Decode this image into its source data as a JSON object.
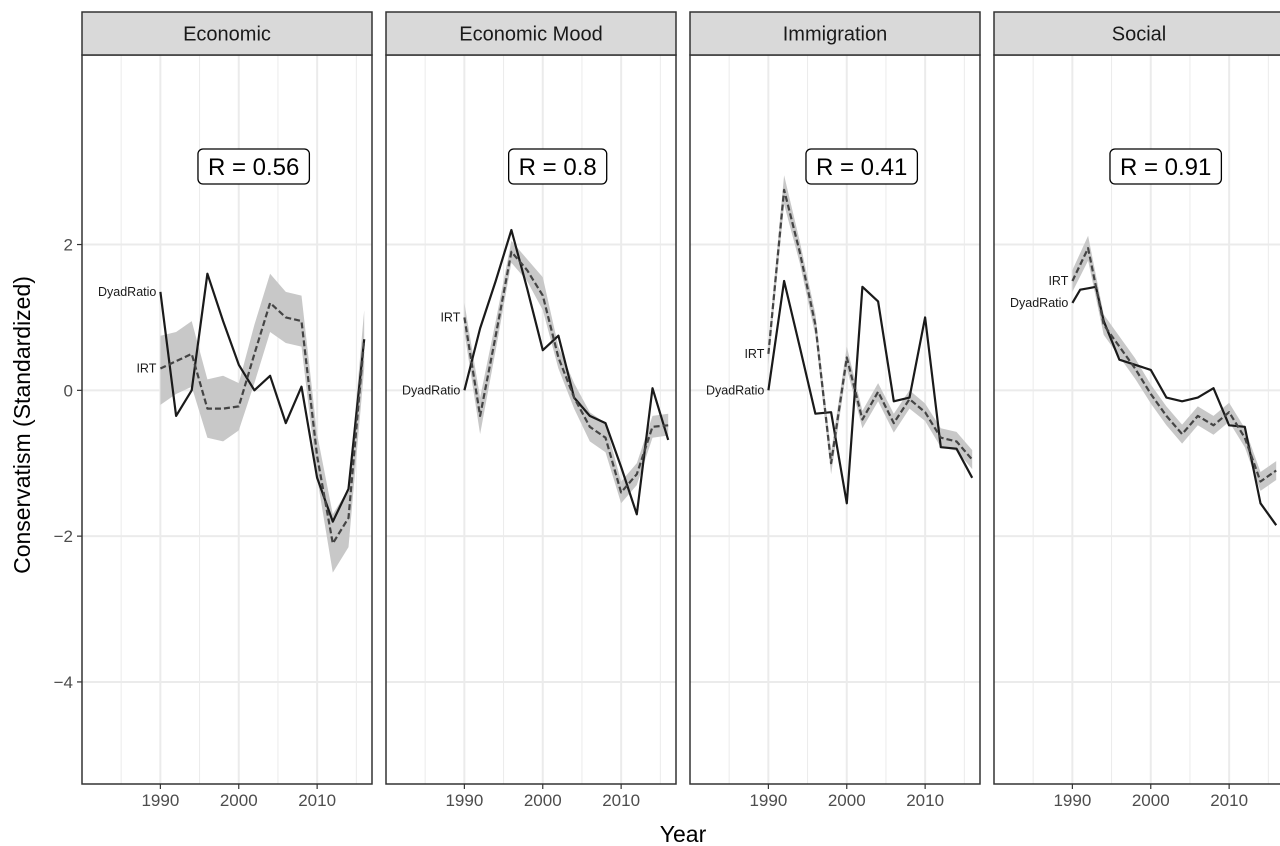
{
  "chart_data": {
    "type": "line",
    "title": "",
    "xlabel": "Year",
    "ylabel": "Conservatism (Standardized)",
    "xlim": [
      1980,
      2017
    ],
    "ylim": [
      -5.4,
      4.6
    ],
    "x_ticks": [
      1990,
      2000,
      2010
    ],
    "y_ticks": [
      -4,
      -2,
      0,
      2
    ],
    "grid": true,
    "legend": "none",
    "colors": {
      "dyad": "#1a1a1a",
      "irt": "#444444",
      "ribbon": "#c8c8c8",
      "strip": "#d9d9d9",
      "panel_border": "#333333",
      "grid": "#ebebeb"
    },
    "panels": [
      {
        "name": "Economic",
        "r_label": "R = 0.56",
        "series": [
          {
            "name": "DyadRatio",
            "style": "solid",
            "label": "DyadRatio",
            "x": [
              1990,
              1992,
              1994,
              1996,
              1998,
              2000,
              2002,
              2004,
              2006,
              2008,
              2010,
              2012,
              2014,
              2016
            ],
            "y": [
              1.35,
              -0.35,
              0.0,
              1.6,
              0.95,
              0.35,
              0.0,
              0.2,
              -0.45,
              0.05,
              -1.2,
              -1.8,
              -1.35,
              0.7
            ]
          },
          {
            "name": "IRT",
            "style": "dashed",
            "label": "IRT",
            "x": [
              1990,
              1992,
              1994,
              1996,
              1998,
              2000,
              2002,
              2004,
              2006,
              2008,
              2010,
              2012,
              2014,
              2016
            ],
            "y": [
              0.3,
              0.4,
              0.5,
              -0.25,
              -0.25,
              -0.22,
              0.5,
              1.2,
              1.0,
              0.95,
              -0.9,
              -2.1,
              -1.75,
              0.7
            ],
            "lower": [
              -0.2,
              -0.05,
              0.05,
              -0.65,
              -0.7,
              -0.55,
              0.1,
              0.8,
              0.65,
              0.6,
              -1.2,
              -2.5,
              -2.15,
              0.3
            ],
            "upper": [
              0.75,
              0.8,
              0.95,
              0.15,
              0.2,
              0.1,
              0.9,
              1.6,
              1.35,
              1.3,
              -0.6,
              -1.7,
              -1.35,
              1.1
            ]
          }
        ]
      },
      {
        "name": "Economic Mood",
        "r_label": "R = 0.8",
        "series": [
          {
            "name": "DyadRatio",
            "style": "solid",
            "label": "DyadRatio",
            "x": [
              1990,
              1992,
              1994,
              1996,
              1998,
              2000,
              2002,
              2004,
              2006,
              2008,
              2010,
              2012,
              2014,
              2016
            ],
            "y": [
              0.0,
              0.85,
              1.5,
              2.2,
              1.4,
              0.55,
              0.75,
              -0.1,
              -0.35,
              -0.45,
              -1.05,
              -1.7,
              0.03,
              -0.68
            ]
          },
          {
            "name": "IRT",
            "style": "dashed",
            "label": "IRT",
            "x": [
              1990,
              1992,
              1994,
              1996,
              1998,
              2000,
              2002,
              2004,
              2006,
              2008,
              2010,
              2012,
              2014,
              2016
            ],
            "y": [
              1.0,
              -0.35,
              0.75,
              1.9,
              1.65,
              1.3,
              0.45,
              -0.1,
              -0.5,
              -0.65,
              -1.4,
              -1.15,
              -0.5,
              -0.48
            ],
            "lower": [
              0.8,
              -0.6,
              0.55,
              1.75,
              1.5,
              1.1,
              0.3,
              -0.25,
              -0.7,
              -0.85,
              -1.55,
              -1.3,
              -0.65,
              -0.62
            ],
            "upper": [
              1.2,
              -0.1,
              0.95,
              2.05,
              1.8,
              1.55,
              0.6,
              0.1,
              -0.3,
              -0.45,
              -1.25,
              -1.0,
              -0.35,
              -0.32
            ]
          }
        ]
      },
      {
        "name": "Immigration",
        "r_label": "R = 0.41",
        "series": [
          {
            "name": "DyadRatio",
            "style": "solid",
            "label": "DyadRatio",
            "x": [
              1990,
              1992,
              1994,
              1996,
              1998,
              2000,
              2002,
              2004,
              2006,
              2008,
              2010,
              2012,
              2014,
              2016
            ],
            "y": [
              0.0,
              1.5,
              0.6,
              -0.32,
              -0.3,
              -1.55,
              1.42,
              1.22,
              -0.15,
              -0.1,
              1.0,
              -0.78,
              -0.8,
              -1.2
            ]
          },
          {
            "name": "IRT",
            "style": "dashed",
            "label": "IRT",
            "x": [
              1990,
              1992,
              1994,
              1996,
              1998,
              2000,
              2002,
              2004,
              2006,
              2008,
              2010,
              2012,
              2014,
              2016
            ],
            "y": [
              0.5,
              2.75,
              1.9,
              0.9,
              -1.0,
              0.45,
              -0.4,
              -0.02,
              -0.45,
              -0.12,
              -0.3,
              -0.65,
              -0.7,
              -0.95
            ],
            "lower": [
              0.35,
              2.55,
              1.75,
              0.75,
              -1.15,
              0.3,
              -0.52,
              -0.15,
              -0.58,
              -0.25,
              -0.42,
              -0.78,
              -0.83,
              -1.08
            ],
            "upper": [
              0.65,
              2.95,
              2.05,
              1.05,
              -0.85,
              0.6,
              -0.28,
              0.1,
              -0.32,
              0.0,
              -0.18,
              -0.52,
              -0.57,
              -0.82
            ]
          }
        ]
      },
      {
        "name": "Social",
        "r_label": "R = 0.91",
        "series": [
          {
            "name": "DyadRatio",
            "style": "solid",
            "label": "DyadRatio",
            "x": [
              1990,
              1991,
              1992,
              1993,
              1994,
              1996,
              1998,
              2000,
              2002,
              2004,
              2006,
              2008,
              2010,
              2012,
              2014,
              2016
            ],
            "y": [
              1.2,
              1.38,
              1.4,
              1.42,
              0.95,
              0.42,
              0.35,
              0.28,
              -0.1,
              -0.15,
              -0.1,
              0.03,
              -0.48,
              -0.5,
              -1.55,
              -1.85
            ]
          },
          {
            "name": "IRT",
            "style": "dashed",
            "label": "IRT",
            "x": [
              1990,
              1992,
              1994,
              1996,
              1998,
              2000,
              2002,
              2004,
              2006,
              2008,
              2010,
              2012,
              2014,
              2016
            ],
            "y": [
              1.5,
              1.95,
              0.9,
              0.6,
              0.3,
              -0.05,
              -0.35,
              -0.6,
              -0.35,
              -0.48,
              -0.3,
              -0.65,
              -1.25,
              -1.1
            ],
            "lower": [
              1.35,
              1.78,
              0.76,
              0.46,
              0.16,
              -0.18,
              -0.48,
              -0.73,
              -0.48,
              -0.61,
              -0.43,
              -0.78,
              -1.38,
              -1.23
            ],
            "upper": [
              1.65,
              2.12,
              1.04,
              0.74,
              0.44,
              0.08,
              -0.22,
              -0.47,
              -0.22,
              -0.35,
              -0.17,
              -0.52,
              -1.12,
              -0.97
            ]
          }
        ]
      }
    ]
  }
}
